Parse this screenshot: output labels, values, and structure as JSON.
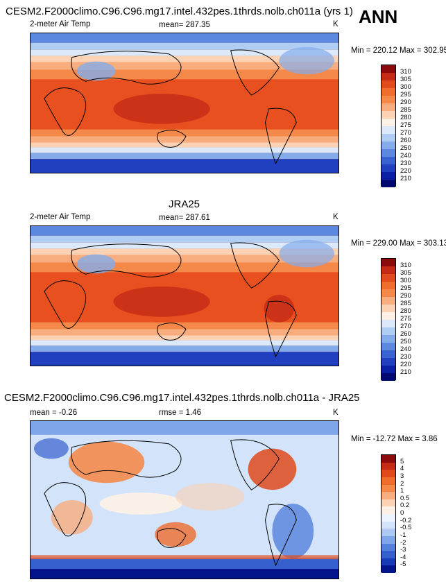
{
  "season": "ANN",
  "panels": [
    {
      "title": "CESM2.F2000climo.C96.C96.mg17.intel.432pes.1thrds.nolb.ch011a (yrs 1)",
      "variable": "2-meter Air Temp",
      "stat_text": "mean= 287.35",
      "units": "K",
      "minmax": "Min = 220.12 Max = 302.95",
      "levels": [
        "310",
        "305",
        "300",
        "295",
        "290",
        "285",
        "280",
        "275",
        "270",
        "260",
        "250",
        "240",
        "230",
        "220",
        "210"
      ],
      "colors": [
        "#8b0a0c",
        "#c42a15",
        "#e04a1c",
        "#ee6c2c",
        "#f4894a",
        "#f8ad7e",
        "#fbd2b3",
        "#fdf1e6",
        "#dbe9fb",
        "#b0cdf4",
        "#84aceb",
        "#5c88e0",
        "#3963d0",
        "#2040bf",
        "#0b1fa4",
        "#020a72"
      ]
    },
    {
      "title": "JRA25",
      "variable": "2-meter Air Temp",
      "stat_text": "mean= 287.61",
      "units": "K",
      "minmax": "Min = 229.00 Max = 303.13",
      "levels": [
        "310",
        "305",
        "300",
        "295",
        "290",
        "285",
        "280",
        "275",
        "270",
        "260",
        "250",
        "240",
        "230",
        "220",
        "210"
      ],
      "colors": [
        "#8b0a0c",
        "#c42a15",
        "#e04a1c",
        "#ee6c2c",
        "#f4894a",
        "#f8ad7e",
        "#fbd2b3",
        "#fdf1e6",
        "#dbe9fb",
        "#b0cdf4",
        "#84aceb",
        "#5c88e0",
        "#3963d0",
        "#2040bf",
        "#0b1fa4",
        "#020a72"
      ]
    },
    {
      "title": "CESM2.F2000climo.C96.C96.mg17.intel.432pes.1thrds.nolb.ch011a - JRA25",
      "mean_text": "mean =  -0.26",
      "rmse_text": "rmse =   1.46",
      "units": "K",
      "minmax": "Min = -12.72 Max =   3.86",
      "levels": [
        "5",
        "4",
        "3",
        "2",
        "1",
        "0.5",
        "0.2",
        "0",
        "-0.2",
        "-0.5",
        "-1",
        "-2",
        "-3",
        "-4",
        "-5"
      ],
      "colors": [
        "#8b0a0c",
        "#c42a15",
        "#e04a1c",
        "#ee6c2c",
        "#f4894a",
        "#f8ad7e",
        "#fbd2b3",
        "#fdf1e6",
        "#eef4fd",
        "#d2e3fa",
        "#adc9f3",
        "#7fa6e8",
        "#5581dc",
        "#3560cd",
        "#183ab7",
        "#04148a"
      ]
    }
  ]
}
